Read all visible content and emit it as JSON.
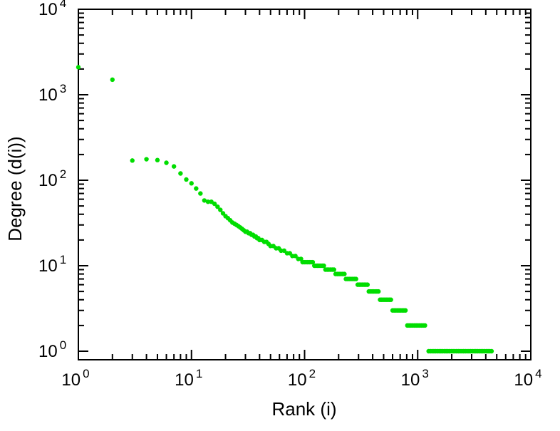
{
  "chart_data": {
    "type": "scatter",
    "xlabel": "Rank (i)",
    "ylabel": "Degree (d(i))",
    "xscale": "log",
    "yscale": "log",
    "xlim": [
      1,
      10000
    ],
    "ylim": [
      1,
      10000
    ],
    "grid": false,
    "legend": false,
    "x_ticks": [
      1,
      10,
      100,
      1000,
      10000
    ],
    "y_ticks": [
      1,
      10,
      100,
      1000,
      10000
    ],
    "x_tick_labels": [
      "10^0",
      "10^1",
      "10^2",
      "10^3",
      "10^4"
    ],
    "y_tick_labels": [
      "10^0",
      "10^1",
      "10^2",
      "10^3",
      "10^4"
    ],
    "marker_color": "#00dd00",
    "axis_color": "#000000",
    "background_color": "#ffffff",
    "points": [
      [
        1,
        2100
      ],
      [
        2,
        1500
      ],
      [
        3,
        170
      ],
      [
        4,
        176
      ],
      [
        5,
        172
      ],
      [
        6,
        160
      ],
      [
        7,
        145
      ],
      [
        8,
        120
      ],
      [
        9,
        102
      ],
      [
        10,
        92
      ],
      [
        11,
        80
      ],
      [
        12,
        70
      ],
      [
        13,
        58
      ],
      [
        14,
        56
      ],
      [
        15,
        56
      ],
      [
        16,
        53
      ],
      [
        17,
        49
      ],
      [
        18,
        45
      ],
      [
        19,
        41
      ],
      [
        20,
        38
      ],
      [
        21,
        36
      ],
      [
        22,
        34
      ],
      [
        23,
        32
      ],
      [
        24,
        31
      ],
      [
        25,
        30
      ],
      [
        26,
        29
      ],
      [
        27,
        28
      ],
      [
        28,
        27
      ],
      [
        29,
        26
      ],
      [
        30,
        25
      ],
      [
        31,
        25
      ],
      [
        32,
        24
      ],
      [
        33,
        24
      ],
      [
        34,
        23
      ],
      [
        35,
        23
      ],
      [
        36,
        22
      ],
      [
        37,
        22
      ],
      [
        38,
        21
      ],
      [
        39,
        21
      ],
      [
        40,
        20
      ],
      [
        42,
        20
      ],
      [
        44,
        19
      ],
      [
        46,
        19
      ],
      [
        48,
        18
      ],
      [
        50,
        17
      ],
      [
        53,
        17
      ],
      [
        56,
        16
      ],
      [
        59,
        16
      ],
      [
        62,
        15
      ],
      [
        66,
        15
      ],
      [
        70,
        14
      ],
      [
        74,
        14
      ],
      [
        78,
        13
      ],
      [
        83,
        13
      ],
      [
        88,
        12
      ],
      [
        93,
        12
      ]
    ],
    "runs": [
      {
        "degree": 11,
        "rank_start": 96,
        "rank_end": 118
      },
      {
        "degree": 10,
        "rank_start": 122,
        "rank_end": 148
      },
      {
        "degree": 9,
        "rank_start": 153,
        "rank_end": 182
      },
      {
        "degree": 8,
        "rank_start": 188,
        "rank_end": 225
      },
      {
        "degree": 7,
        "rank_start": 232,
        "rank_end": 285
      },
      {
        "degree": 6,
        "rank_start": 295,
        "rank_end": 360
      },
      {
        "degree": 5,
        "rank_start": 370,
        "rank_end": 450
      },
      {
        "degree": 4,
        "rank_start": 465,
        "rank_end": 580
      },
      {
        "degree": 3,
        "rank_start": 600,
        "rank_end": 780
      },
      {
        "degree": 2,
        "rank_start": 810,
        "rank_end": 1160
      },
      {
        "degree": 1,
        "rank_start": 1250,
        "rank_end": 4500
      }
    ]
  }
}
